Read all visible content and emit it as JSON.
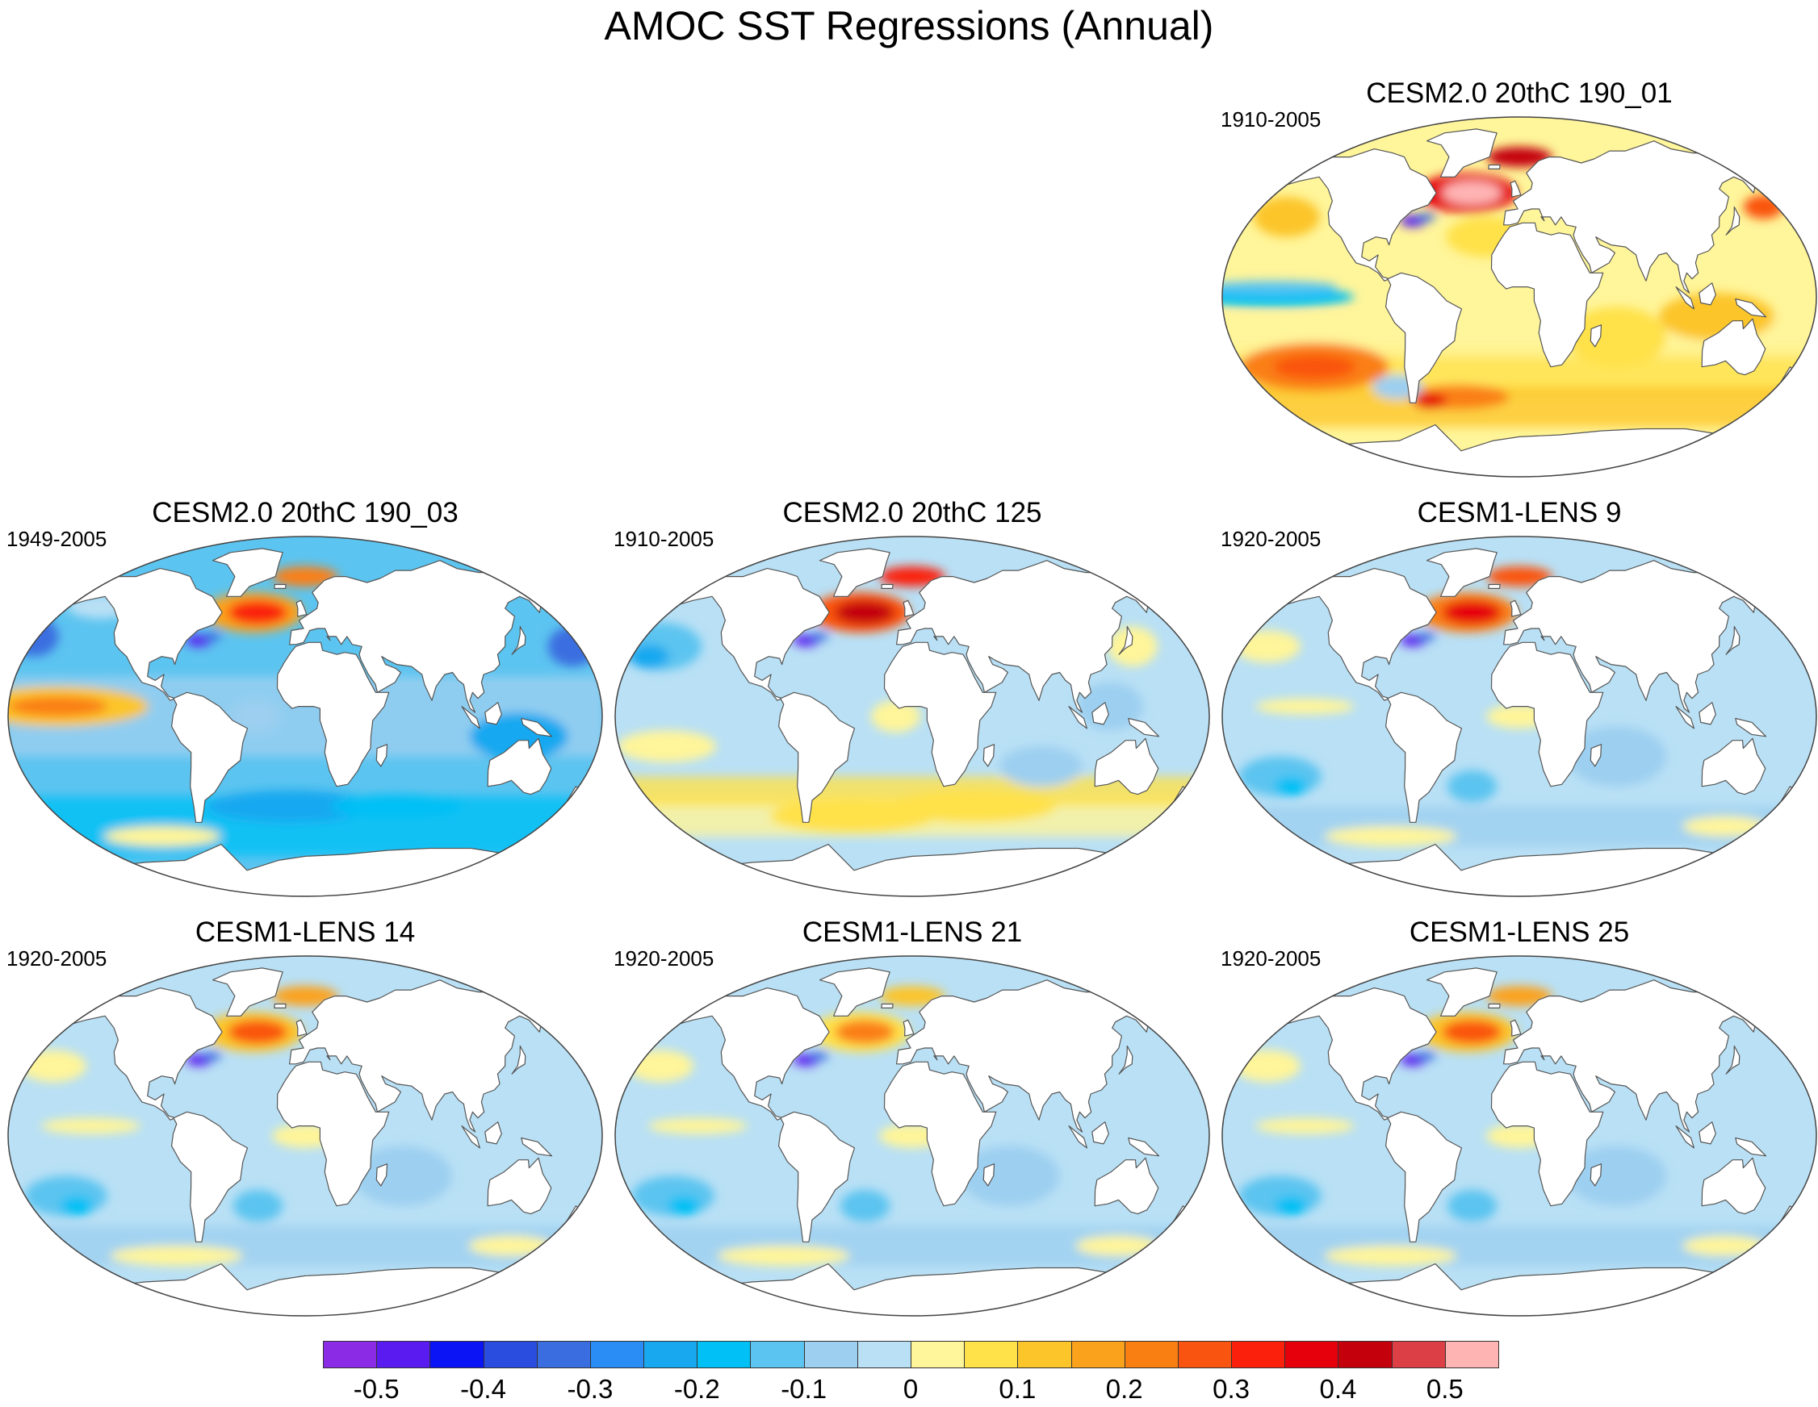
{
  "title": "AMOC SST Regressions (Annual)",
  "panels": [
    {
      "id": "cesm2-190-01",
      "title": "CESM2.0 20thC 190_01",
      "period": "1910-2005",
      "pattern": "warm",
      "nh_hot": 0.5
    },
    {
      "id": "cesm2-190-03",
      "title": "CESM2.0 20thC 190_03",
      "period": "1949-2005",
      "pattern": "cold",
      "nh_hot": 0.3
    },
    {
      "id": "cesm2-125",
      "title": "CESM2.0 20thC 125",
      "period": "1910-2005",
      "pattern": "neutral",
      "nh_hot": 0.4
    },
    {
      "id": "lens-9",
      "title": "CESM1-LENS 9",
      "period": "1920-2005",
      "pattern": "cool",
      "nh_hot": 0.35
    },
    {
      "id": "lens-14",
      "title": "CESM1-LENS 14",
      "period": "1920-2005",
      "pattern": "cool",
      "nh_hot": 0.25
    },
    {
      "id": "lens-21",
      "title": "CESM1-LENS 21",
      "period": "1920-2005",
      "pattern": "cool",
      "nh_hot": 0.2
    },
    {
      "id": "lens-25",
      "title": "CESM1-LENS 25",
      "period": "1920-2005",
      "pattern": "cool",
      "nh_hot": 0.25
    }
  ],
  "colorbar": {
    "colors": [
      "#8b2be6",
      "#5a1bf0",
      "#0a14f5",
      "#2a4de0",
      "#3a6ee0",
      "#2a8cf5",
      "#18a8f0",
      "#00c0f5",
      "#5cc4f0",
      "#9ccff0",
      "#b9e0f5",
      "#fff59a",
      "#ffe14a",
      "#fcc52a",
      "#fba21c",
      "#fa7f12",
      "#fa5510",
      "#fa200c",
      "#e6000c",
      "#c4000c",
      "#dc4046",
      "#ffb4b4"
    ],
    "ticks": [
      {
        "label": "-0.5",
        "index": 1
      },
      {
        "label": "-0.4",
        "index": 3
      },
      {
        "label": "-0.3",
        "index": 5
      },
      {
        "label": "-0.2",
        "index": 7
      },
      {
        "label": "-0.1",
        "index": 9
      },
      {
        "label": "0",
        "index": 11
      },
      {
        "label": "0.1",
        "index": 13
      },
      {
        "label": "0.2",
        "index": 15
      },
      {
        "label": "0.3",
        "index": 17
      },
      {
        "label": "0.4",
        "index": 19
      },
      {
        "label": "0.5",
        "index": 21
      }
    ]
  }
}
